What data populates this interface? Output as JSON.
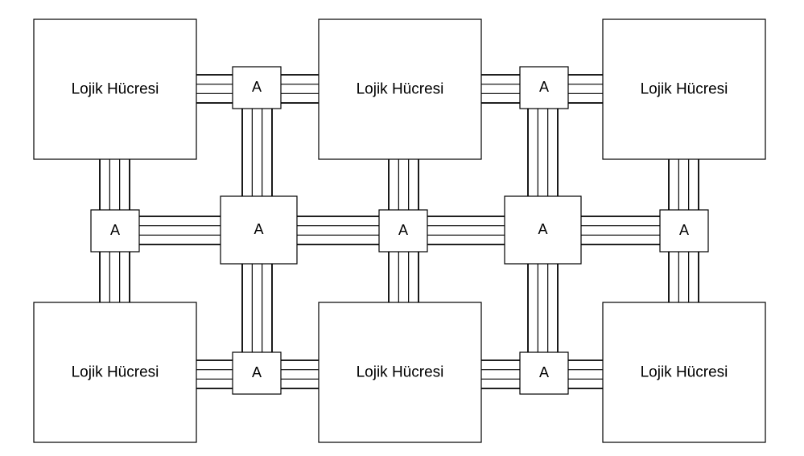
{
  "cell_label": "Lojik Hücresi",
  "switch_label": "A",
  "logic_cells": [
    {
      "id": "cell-top-left",
      "label": "Lojik Hücresi"
    },
    {
      "id": "cell-top-middle",
      "label": "Lojik Hücresi"
    },
    {
      "id": "cell-top-right",
      "label": "Lojik Hücresi"
    },
    {
      "id": "cell-bottom-left",
      "label": "Lojik Hücresi"
    },
    {
      "id": "cell-bottom-middle",
      "label": "Lojik Hücresi"
    },
    {
      "id": "cell-bottom-right",
      "label": "Lojik Hücresi"
    }
  ],
  "switch_boxes": [
    {
      "id": "switch-top-1",
      "label": "A"
    },
    {
      "id": "switch-top-2",
      "label": "A"
    },
    {
      "id": "switch-mid-left",
      "label": "A"
    },
    {
      "id": "switch-mid-big-1",
      "label": "A"
    },
    {
      "id": "switch-mid-center",
      "label": "A"
    },
    {
      "id": "switch-mid-big-2",
      "label": "A"
    },
    {
      "id": "switch-mid-right",
      "label": "A"
    },
    {
      "id": "switch-bottom-1",
      "label": "A"
    },
    {
      "id": "switch-bottom-2",
      "label": "A"
    }
  ]
}
